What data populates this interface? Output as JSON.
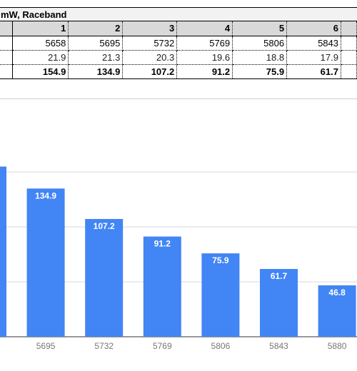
{
  "sheet": {
    "title": "mW, Raceband",
    "header": [
      "",
      "1",
      "2",
      "3",
      "4",
      "5",
      "6",
      ""
    ],
    "rows": [
      [
        "",
        "5658",
        "5695",
        "5732",
        "5769",
        "5806",
        "5843",
        ""
      ],
      [
        "",
        "21.9",
        "21.3",
        "20.3",
        "19.6",
        "18.8",
        "17.9",
        ""
      ],
      [
        "",
        "154.9",
        "134.9",
        "107.2",
        "91.2",
        "75.9",
        "61.7",
        ""
      ]
    ]
  },
  "colors": {
    "bar": "#4285f4",
    "grid": "#d9d9d9",
    "label": "#ffffff"
  },
  "chart_data": {
    "type": "bar",
    "categories": [
      "5658",
      "5695",
      "5732",
      "5769",
      "5806",
      "5843",
      "5880"
    ],
    "tick_labels": [
      "",
      "5695",
      "5732",
      "5769",
      "5806",
      "5843",
      "5880"
    ],
    "values": [
      154.9,
      134.9,
      107.2,
      91.2,
      75.9,
      61.7,
      46.8
    ],
    "data_labels": [
      "",
      "134.9",
      "107.2",
      "91.2",
      "75.9",
      "61.7",
      "46.8"
    ],
    "ylim": [
      0,
      200
    ],
    "gridlines": [
      0,
      50,
      100,
      150
    ],
    "title": "",
    "xlabel": "",
    "ylabel": ""
  }
}
